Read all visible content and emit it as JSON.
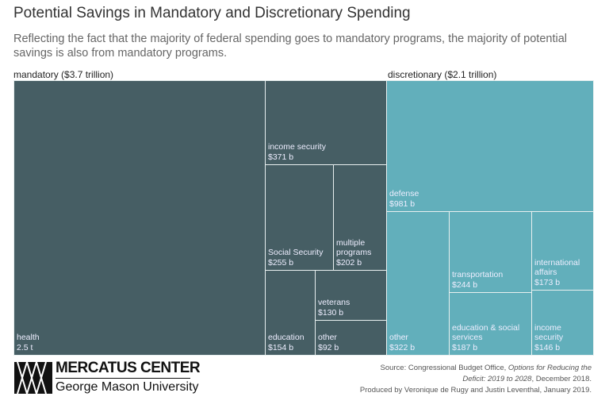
{
  "chart_data": {
    "type": "treemap",
    "title": "Potential Savings in Mandatory and Discretionary Spending",
    "subtitle": "Reflecting the fact that the majority of federal spending goes to mandatory programs, the majority of potential savings is also from mandatory programs.",
    "groups": [
      {
        "name": "mandatory ($3.7 trillion)",
        "color": "#465e64",
        "items": [
          {
            "label": "health",
            "value": "2.5 t"
          },
          {
            "label": "income security",
            "value": "$371 b"
          },
          {
            "label": "Social Security",
            "value": "$255 b"
          },
          {
            "label": "multiple programs",
            "value": "$202 b"
          },
          {
            "label": "education",
            "value": "$154 b"
          },
          {
            "label": "veterans",
            "value": "$130 b"
          },
          {
            "label": "other",
            "value": "$92 b"
          }
        ]
      },
      {
        "name": "discretionary ($2.1 trillion)",
        "color": "#62afbb",
        "items": [
          {
            "label": "defense",
            "value": "$981 b"
          },
          {
            "label": "other",
            "value": "$322 b"
          },
          {
            "label": "transportation",
            "value": "$244 b"
          },
          {
            "label": "education & social services",
            "value": "$187 b"
          },
          {
            "label": "international affairs",
            "value": "$173 b"
          },
          {
            "label": "income security",
            "value": "$146 b"
          }
        ]
      }
    ]
  },
  "footer": {
    "logo_line1": "MERCATUS CENTER",
    "logo_line2": "George Mason University",
    "source_prefix": "Source: Congressional Budget Office, ",
    "source_title": "Options for Reducing the Deficit: 2019 to 2028",
    "source_suffix": ", December 2018.",
    "produced": "Produced by Veronique de Rugy and Justin Leventhal, January 2019."
  }
}
